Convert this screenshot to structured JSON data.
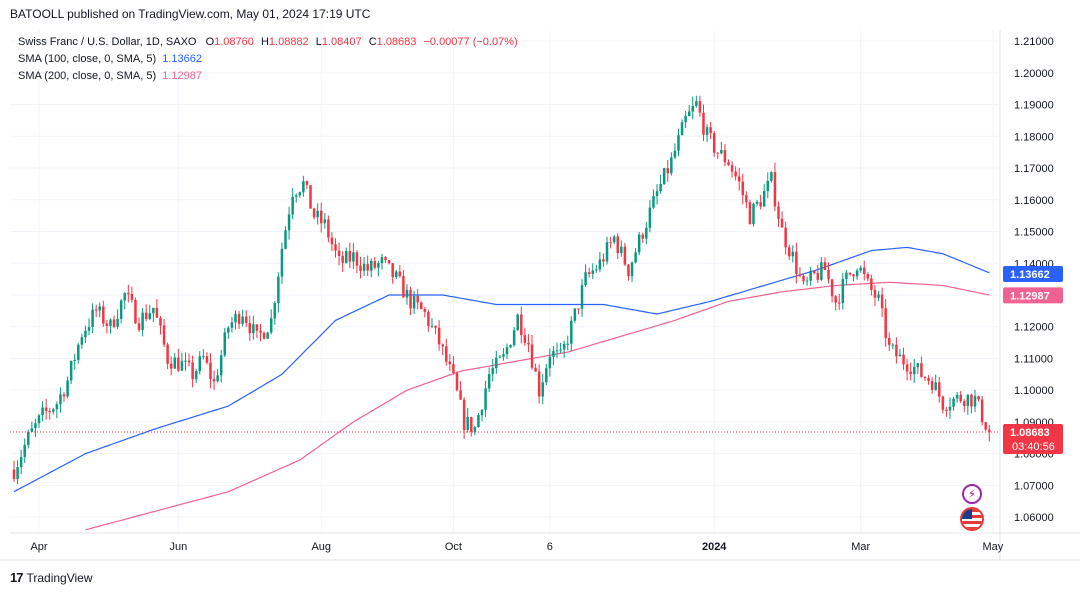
{
  "header": {
    "text": "BATOOLL published on TradingView.com, May 01, 2024 17:19 UTC"
  },
  "legend": {
    "symbol": "Swiss Franc / U.S. Dollar, 1D, SAXO",
    "o_label": "O",
    "o_value": "1.08760",
    "h_label": "H",
    "h_value": "1.08882",
    "l_label": "L",
    "l_value": "1.08407",
    "c_label": "C",
    "c_value": "1.08683",
    "change": "−0.00077 (−0.07%)",
    "sma100_label": "SMA (100, close, 0, SMA, 5)",
    "sma100_value": "1.13662",
    "sma200_label": "SMA (200, close, 0, SMA, 5)",
    "sma200_value": "1.12987"
  },
  "footer": {
    "logo": "17",
    "brand": "TradingView"
  },
  "colors": {
    "up": "#089981",
    "down": "#f23645",
    "sma100": "#2962ff",
    "sma200": "#f06292",
    "grid": "#f0f3fa"
  },
  "icons": [
    "lightning-icon",
    "us-flag-icon"
  ],
  "chart_data": {
    "type": "candlestick",
    "y_axis": {
      "range": [
        1.055,
        1.2135
      ],
      "ticks": [
        "1.21000",
        "1.20000",
        "1.19000",
        "1.18000",
        "1.17000",
        "1.16000",
        "1.15000",
        "1.14000",
        "1.13000",
        "1.12000",
        "1.11000",
        "1.10000",
        "1.09000",
        "1.08000",
        "1.07000",
        "1.06000"
      ]
    },
    "x_axis": {
      "ticks": [
        "Apr",
        "Jun",
        "Aug",
        "Oct",
        "6",
        "2024",
        "Mar",
        "May"
      ],
      "tick_bar_index": [
        7,
        46,
        86,
        123,
        150,
        196,
        237,
        274
      ]
    },
    "price_labels": [
      {
        "name": "SMA 100",
        "value": "1.13662",
        "color": "#2962ff"
      },
      {
        "name": "SMA 200",
        "value": "1.12987",
        "color": "#f06292"
      },
      {
        "name": "Last",
        "value": "1.08683",
        "countdown": "03:40:56",
        "color": "#f23645"
      }
    ],
    "close_path": [
      [
        0,
        1.075
      ],
      [
        4,
        1.085
      ],
      [
        8,
        1.092
      ],
      [
        12,
        1.096
      ],
      [
        15,
        1.103
      ],
      [
        19,
        1.118
      ],
      [
        23,
        1.125
      ],
      [
        27,
        1.12
      ],
      [
        31,
        1.13
      ],
      [
        35,
        1.122
      ],
      [
        39,
        1.126
      ],
      [
        43,
        1.11
      ],
      [
        47,
        1.108
      ],
      [
        50,
        1.105
      ],
      [
        53,
        1.11
      ],
      [
        56,
        1.102
      ],
      [
        60,
        1.12
      ],
      [
        64,
        1.125
      ],
      [
        68,
        1.116
      ],
      [
        72,
        1.122
      ],
      [
        75,
        1.145
      ],
      [
        78,
        1.163
      ],
      [
        81,
        1.165
      ],
      [
        84,
        1.155
      ],
      [
        87,
        1.152
      ],
      [
        91,
        1.14
      ],
      [
        95,
        1.142
      ],
      [
        99,
        1.138
      ],
      [
        103,
        1.14
      ],
      [
        107,
        1.135
      ],
      [
        111,
        1.128
      ],
      [
        115,
        1.124
      ],
      [
        119,
        1.115
      ],
      [
        123,
        1.103
      ],
      [
        126,
        1.09
      ],
      [
        129,
        1.088
      ],
      [
        133,
        1.105
      ],
      [
        137,
        1.11
      ],
      [
        141,
        1.123
      ],
      [
        144,
        1.115
      ],
      [
        147,
        1.1
      ],
      [
        150,
        1.112
      ],
      [
        153,
        1.11
      ],
      [
        156,
        1.12
      ],
      [
        160,
        1.135
      ],
      [
        164,
        1.14
      ],
      [
        168,
        1.148
      ],
      [
        172,
        1.138
      ],
      [
        176,
        1.15
      ],
      [
        180,
        1.162
      ],
      [
        184,
        1.172
      ],
      [
        188,
        1.185
      ],
      [
        191,
        1.19
      ],
      [
        194,
        1.18
      ],
      [
        197,
        1.175
      ],
      [
        200,
        1.172
      ],
      [
        203,
        1.165
      ],
      [
        206,
        1.155
      ],
      [
        209,
        1.16
      ],
      [
        212,
        1.166
      ],
      [
        215,
        1.15
      ],
      [
        218,
        1.142
      ],
      [
        221,
        1.132
      ],
      [
        224,
        1.136
      ],
      [
        227,
        1.138
      ],
      [
        230,
        1.128
      ],
      [
        233,
        1.135
      ],
      [
        236,
        1.14
      ],
      [
        239,
        1.133
      ],
      [
        242,
        1.128
      ],
      [
        245,
        1.113
      ],
      [
        248,
        1.11
      ],
      [
        251,
        1.108
      ],
      [
        254,
        1.105
      ],
      [
        257,
        1.103
      ],
      [
        260,
        1.096
      ],
      [
        263,
        1.097
      ],
      [
        266,
        1.098
      ],
      [
        269,
        1.097
      ],
      [
        273,
        1.0868
      ]
    ],
    "sma100_path": [
      [
        0,
        1.068
      ],
      [
        20,
        1.08
      ],
      [
        40,
        1.088
      ],
      [
        60,
        1.095
      ],
      [
        75,
        1.105
      ],
      [
        90,
        1.122
      ],
      [
        105,
        1.13
      ],
      [
        120,
        1.13
      ],
      [
        135,
        1.127
      ],
      [
        150,
        1.127
      ],
      [
        165,
        1.127
      ],
      [
        180,
        1.124
      ],
      [
        195,
        1.128
      ],
      [
        210,
        1.133
      ],
      [
        225,
        1.138
      ],
      [
        240,
        1.144
      ],
      [
        250,
        1.145
      ],
      [
        260,
        1.143
      ],
      [
        273,
        1.137
      ]
    ],
    "sma200_path": [
      [
        20,
        1.056
      ],
      [
        40,
        1.062
      ],
      [
        60,
        1.068
      ],
      [
        80,
        1.078
      ],
      [
        95,
        1.09
      ],
      [
        110,
        1.1
      ],
      [
        125,
        1.106
      ],
      [
        140,
        1.109
      ],
      [
        155,
        1.112
      ],
      [
        170,
        1.117
      ],
      [
        185,
        1.122
      ],
      [
        200,
        1.128
      ],
      [
        215,
        1.131
      ],
      [
        230,
        1.133
      ],
      [
        245,
        1.134
      ],
      [
        260,
        1.133
      ],
      [
        273,
        1.13
      ]
    ]
  }
}
